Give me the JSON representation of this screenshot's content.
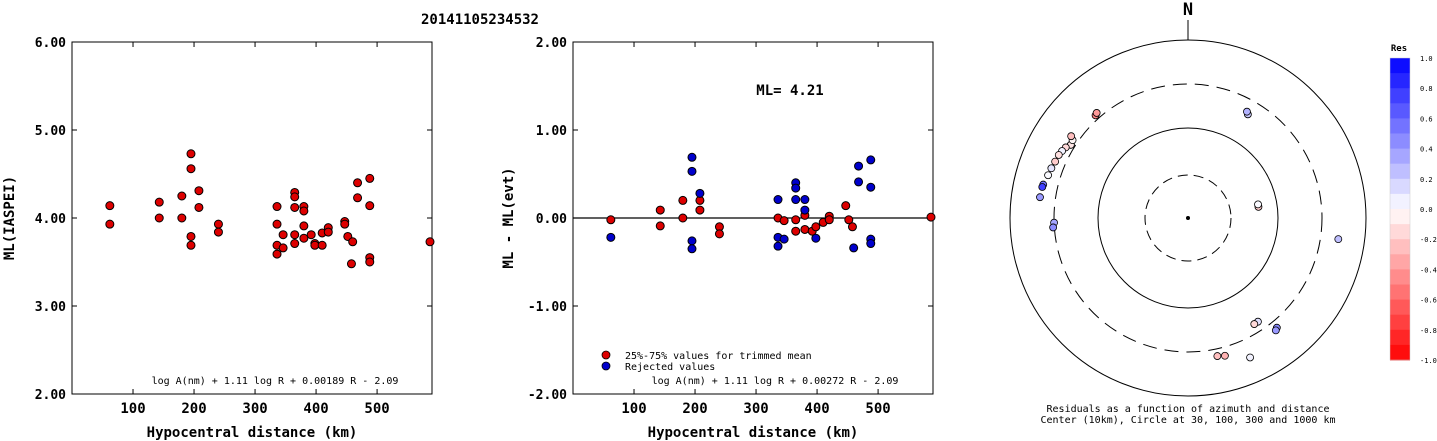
{
  "title": "20141105234532",
  "chart_data": [
    {
      "type": "scatter",
      "ylabel": "ML(IASPEI)",
      "xlabel": "Hypocentral distance (km)",
      "xlim": [
        0,
        590
      ],
      "ylim": [
        2.0,
        6.0
      ],
      "xticks": [
        "100",
        "200",
        "300",
        "400",
        "500"
      ],
      "xtick_values": [
        100,
        200,
        300,
        400,
        500
      ],
      "yticks": [
        "2.00",
        "3.00",
        "4.00",
        "5.00",
        "6.00"
      ],
      "ytick_values": [
        2,
        3,
        4,
        5,
        6
      ],
      "formula": "log A(nm) + 1.11 log R + 0.00189 R - 2.09",
      "point_color": "#dd0000",
      "points": [
        [
          62,
          4.14
        ],
        [
          62,
          3.93
        ],
        [
          143,
          4.18
        ],
        [
          143,
          4.0
        ],
        [
          180,
          4.25
        ],
        [
          180,
          4.0
        ],
        [
          195,
          4.73
        ],
        [
          195,
          4.56
        ],
        [
          195,
          3.79
        ],
        [
          195,
          3.69
        ],
        [
          208,
          4.31
        ],
        [
          208,
          4.12
        ],
        [
          240,
          3.93
        ],
        [
          240,
          3.84
        ],
        [
          336,
          4.13
        ],
        [
          336,
          3.93
        ],
        [
          336,
          3.69
        ],
        [
          336,
          3.59
        ],
        [
          346,
          3.81
        ],
        [
          346,
          3.66
        ],
        [
          365,
          4.29
        ],
        [
          365,
          4.24
        ],
        [
          365,
          4.12
        ],
        [
          365,
          3.81
        ],
        [
          365,
          3.71
        ],
        [
          380,
          4.13
        ],
        [
          380,
          4.08
        ],
        [
          380,
          3.91
        ],
        [
          380,
          3.77
        ],
        [
          392,
          3.81
        ],
        [
          398,
          3.71
        ],
        [
          398,
          3.69
        ],
        [
          410,
          3.83
        ],
        [
          410,
          3.69
        ],
        [
          420,
          3.89
        ],
        [
          420,
          3.84
        ],
        [
          447,
          3.96
        ],
        [
          447,
          3.93
        ],
        [
          452,
          3.79
        ],
        [
          458,
          3.48
        ],
        [
          460,
          3.73
        ],
        [
          468,
          4.4
        ],
        [
          468,
          4.23
        ],
        [
          488,
          4.45
        ],
        [
          488,
          4.14
        ],
        [
          488,
          3.55
        ],
        [
          488,
          3.5
        ],
        [
          592,
          3.73
        ]
      ]
    },
    {
      "type": "scatter",
      "ylabel": "ML - ML(evt)",
      "xlabel": "Hypocentral distance (km)",
      "xlim": [
        0,
        590
      ],
      "ylim": [
        -2.0,
        2.0
      ],
      "xticks": [
        "100",
        "200",
        "300",
        "400",
        "500"
      ],
      "xtick_values": [
        100,
        200,
        300,
        400,
        500
      ],
      "yticks": [
        "-2.00",
        "-1.00",
        "0.00",
        "1.00",
        "2.00"
      ],
      "ytick_values": [
        -2,
        -1,
        0,
        1,
        2
      ],
      "annotation": "ML= 4.21",
      "reference_line": 0.0,
      "legend": [
        {
          "label": "25%-75% values for trimmed mean",
          "color": "#dd0000"
        },
        {
          "label": "Rejected values",
          "color": "#0000cc"
        }
      ],
      "formula": "log A(nm) + 1.11 log R + 0.00272 R - 2.09",
      "series": [
        {
          "name": "25%-75% values for trimmed mean",
          "color": "#dd0000",
          "points": [
            [
              62,
              -0.02
            ],
            [
              143,
              0.09
            ],
            [
              143,
              -0.09
            ],
            [
              180,
              0.2
            ],
            [
              180,
              0.0
            ],
            [
              208,
              0.09
            ],
            [
              208,
              0.2
            ],
            [
              240,
              -0.1
            ],
            [
              240,
              -0.18
            ],
            [
              336,
              0.0
            ],
            [
              346,
              -0.03
            ],
            [
              365,
              -0.02
            ],
            [
              365,
              -0.15
            ],
            [
              380,
              0.03
            ],
            [
              380,
              -0.13
            ],
            [
              392,
              -0.15
            ],
            [
              398,
              -0.1
            ],
            [
              410,
              -0.05
            ],
            [
              420,
              0.02
            ],
            [
              420,
              -0.02
            ],
            [
              447,
              0.14
            ],
            [
              452,
              -0.02
            ],
            [
              458,
              -0.1
            ],
            [
              592,
              0.01
            ]
          ]
        },
        {
          "name": "Rejected values",
          "color": "#0000cc",
          "points": [
            [
              62,
              -0.22
            ],
            [
              195,
              0.69
            ],
            [
              195,
              0.53
            ],
            [
              195,
              -0.26
            ],
            [
              195,
              -0.35
            ],
            [
              208,
              0.28
            ],
            [
              336,
              0.21
            ],
            [
              336,
              -0.22
            ],
            [
              336,
              -0.32
            ],
            [
              346,
              -0.24
            ],
            [
              365,
              0.4
            ],
            [
              365,
              0.34
            ],
            [
              365,
              0.21
            ],
            [
              380,
              0.21
            ],
            [
              380,
              0.09
            ],
            [
              398,
              -0.23
            ],
            [
              460,
              -0.34
            ],
            [
              468,
              0.59
            ],
            [
              468,
              0.41
            ],
            [
              488,
              0.66
            ],
            [
              488,
              0.35
            ],
            [
              488,
              -0.24
            ],
            [
              488,
              -0.29
            ]
          ]
        }
      ]
    },
    {
      "type": "scatter",
      "subtype": "polar",
      "north_label": "N",
      "caption_line1": "Residuals as a function of azimuth and distance",
      "caption_line2": "Center (10km), Circle at 30, 100, 300 and 1000 km",
      "colorbar_title": "Res",
      "colorbar_ticks": [
        "1.0",
        "0.8",
        "0.6",
        "0.4",
        "0.2",
        "0.0",
        "-0.2",
        "-0.4",
        "-0.6",
        "-0.8",
        "-1.0"
      ],
      "colorbar_values": [
        1.0,
        0.8,
        0.6,
        0.4,
        0.2,
        0.0,
        -0.2,
        -0.4,
        -0.6,
        -0.8,
        -1.0
      ],
      "points": [
        {
          "az": 302,
          "dist": 336,
          "res": -0.05
        },
        {
          "az": 302,
          "dist": 336,
          "res": -0.1
        },
        {
          "az": 304,
          "dist": 346,
          "res": -0.03
        },
        {
          "az": 300,
          "dist": 365,
          "res": -0.15
        },
        {
          "az": 298,
          "dist": 380,
          "res": 0.05
        },
        {
          "az": 296,
          "dist": 392,
          "res": -0.12
        },
        {
          "az": 293,
          "dist": 398,
          "res": -0.2
        },
        {
          "az": 290,
          "dist": 410,
          "res": 0.1
        },
        {
          "az": 287,
          "dist": 420,
          "res": 0.02
        },
        {
          "az": 305,
          "dist": 380,
          "res": -0.25
        },
        {
          "az": 283,
          "dist": 447,
          "res": 0.55
        },
        {
          "az": 282,
          "dist": 452,
          "res": 0.75
        },
        {
          "az": 278,
          "dist": 458,
          "res": 0.4
        },
        {
          "az": 268,
          "dist": 300,
          "res": 0.35
        },
        {
          "az": 266,
          "dist": 310,
          "res": 0.45
        },
        {
          "az": 318,
          "dist": 336,
          "res": -0.5
        },
        {
          "az": 319,
          "dist": 346,
          "res": -0.4
        },
        {
          "az": 30,
          "dist": 210,
          "res": 0.2
        },
        {
          "az": 29,
          "dist": 220,
          "res": 0.3
        },
        {
          "az": 81,
          "dist": 62,
          "res": -0.2
        },
        {
          "az": 79,
          "dist": 62,
          "res": 0.02
        },
        {
          "az": 98,
          "dist": 488,
          "res": 0.25
        },
        {
          "az": 146,
          "dist": 240,
          "res": 0.12
        },
        {
          "az": 148,
          "dist": 240,
          "res": -0.15
        },
        {
          "az": 141,
          "dist": 365,
          "res": 0.45
        },
        {
          "az": 142,
          "dist": 380,
          "res": 0.4
        },
        {
          "az": 165,
          "dist": 380,
          "res": -0.3
        },
        {
          "az": 168,
          "dist": 365,
          "res": -0.25
        },
        {
          "az": 156,
          "dist": 500,
          "res": 0.05
        }
      ]
    }
  ]
}
